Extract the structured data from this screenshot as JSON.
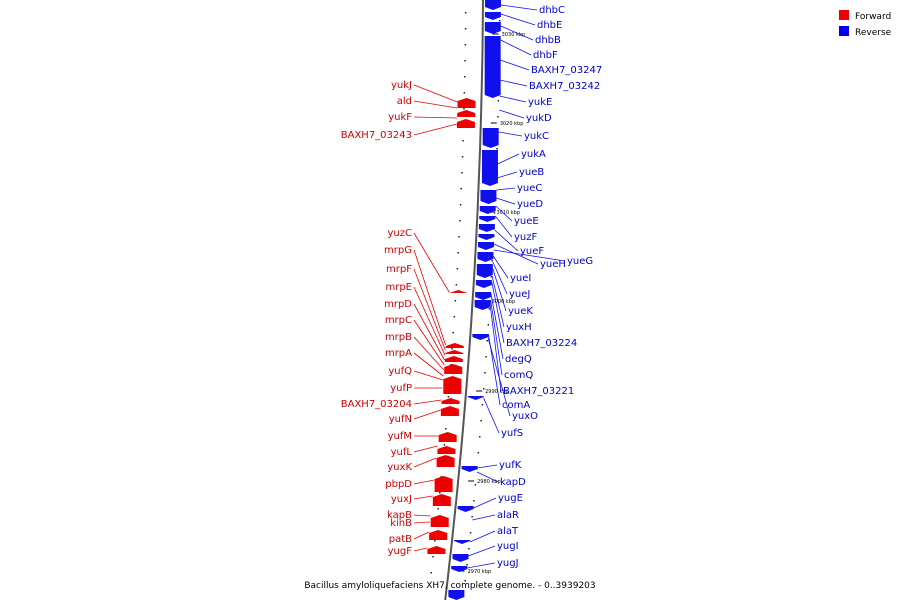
{
  "caption": "Bacillus amyloliquefaciens XH7, complete genome. - 0..3939203",
  "legend": {
    "items": [
      {
        "label": "Forward",
        "color": "#ee0000"
      },
      {
        "label": "Reverse",
        "color": "#0000ee"
      }
    ]
  },
  "ticks": [
    "3030 kbp",
    "3020 kbp",
    "3010 kbp",
    "3000 kbp",
    "2990 kbp",
    "2980 kbp",
    "2970 kbp"
  ],
  "forward_genes": [
    "yukJ",
    "ald",
    "yukF",
    "BAXH7_03243",
    "yuzC",
    "mrpG",
    "mrpF",
    "mrpE",
    "mrpD",
    "mrpC",
    "mrpB",
    "mrpA",
    "yufQ",
    "yufP",
    "BAXH7_03204",
    "yufN",
    "yufM",
    "yufL",
    "yuxK",
    "pbpD",
    "yuxJ",
    "kapB",
    "kinB",
    "patB",
    "yugF"
  ],
  "reverse_genes": [
    "dhbC",
    "dhbE",
    "dhbB",
    "dhbF",
    "BAXH7_03247",
    "BAXH7_03242",
    "yukE",
    "yukD",
    "yukC",
    "yukA",
    "yueB",
    "yueC",
    "yueD",
    "yueE",
    "yuzF",
    "yueF",
    "yueH",
    "yueG",
    "yueI",
    "yueJ",
    "yueK",
    "yuxH",
    "BAXH7_03224",
    "degQ",
    "comQ",
    "BAXH7_03221",
    "comA",
    "yuxO",
    "yufS",
    "yufK",
    "kapD",
    "yugE",
    "alaR",
    "alaT",
    "yugI",
    "yugJ"
  ]
}
